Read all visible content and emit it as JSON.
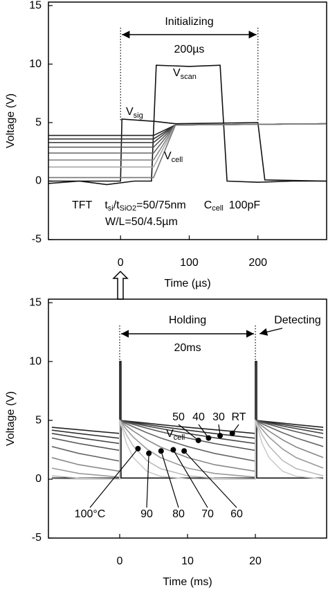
{
  "chart_data": [
    {
      "type": "line",
      "xlabel": "Time (µs)",
      "ylabel": "Voltage (V)",
      "xlim": [
        -105,
        300
      ],
      "ylim": [
        -5,
        15.3
      ],
      "xticks": [
        0,
        100,
        200
      ],
      "yticks": [
        15,
        10,
        5,
        0,
        -5
      ],
      "span": {
        "label": "Initializing",
        "sublabel": "200µs",
        "from": 0,
        "to": 200
      },
      "annotations": [
        {
          "text": "V",
          "sub": "scan"
        },
        {
          "text": "V",
          "sub": "sig"
        },
        {
          "text": "V",
          "sub": "cell"
        }
      ],
      "note": {
        "tft": "TFT",
        "t": "t",
        "si": "si",
        "slash": "/t",
        "sio2": "SiO2",
        "ratio": "=50/75nm",
        "c": "C",
        "cell": "cell",
        "cval": "100pF",
        "wl": "W/L=50/4.5µm"
      },
      "series": [
        {
          "color": "#111111",
          "x": [
            -105,
            -60,
            -20,
            20,
            45,
            52,
            100,
            145,
            155,
            200,
            250,
            300
          ],
          "values": [
            -0.2,
            0,
            -0.3,
            0,
            0,
            9.9,
            9.8,
            9.9,
            0,
            -0.1,
            0,
            0
          ]
        },
        {
          "color": "#111111",
          "x": [
            -105,
            0,
            2,
            50,
            80,
            200,
            210,
            300
          ],
          "values": [
            0,
            0,
            5.3,
            5.1,
            4.9,
            5.0,
            0.1,
            0
          ]
        },
        {
          "color": "#222222",
          "x": [
            -105,
            48,
            80,
            300
          ],
          "values": [
            3.9,
            3.9,
            4.8,
            4.9
          ]
        },
        {
          "color": "#333333",
          "x": [
            -105,
            48,
            80,
            300
          ],
          "values": [
            3.6,
            3.6,
            4.8,
            4.9
          ]
        },
        {
          "color": "#444444",
          "x": [
            -105,
            48,
            80,
            300
          ],
          "values": [
            3.3,
            3.3,
            4.8,
            4.9
          ]
        },
        {
          "color": "#555555",
          "x": [
            -105,
            48,
            80,
            300
          ],
          "values": [
            2.9,
            2.9,
            4.8,
            4.9
          ]
        },
        {
          "color": "#666666",
          "x": [
            -105,
            48,
            80,
            300
          ],
          "values": [
            2.4,
            2.4,
            4.8,
            4.9
          ]
        },
        {
          "color": "#888888",
          "x": [
            -105,
            48,
            80,
            300
          ],
          "values": [
            1.8,
            1.8,
            4.8,
            4.9
          ]
        },
        {
          "color": "#aaaaaa",
          "x": [
            -105,
            48,
            80,
            300
          ],
          "values": [
            1.2,
            1.2,
            4.8,
            4.9
          ]
        },
        {
          "color": "#777777",
          "x": [
            -105,
            48,
            80,
            300
          ],
          "values": [
            0.3,
            0.3,
            4.8,
            4.9
          ]
        }
      ]
    },
    {
      "type": "line",
      "xlabel": "Time (ms)",
      "ylabel": "Voltage (V)",
      "xlim": [
        -10.5,
        30.5
      ],
      "ylim": [
        -5,
        15.3
      ],
      "xticks": [
        0,
        10,
        20
      ],
      "yticks": [
        15,
        10,
        5,
        0,
        -5
      ],
      "span": {
        "label": "Holding",
        "sublabel": "20ms",
        "from": 0,
        "to": 20
      },
      "annotations": [
        {
          "text": "V",
          "sub": "cell"
        }
      ],
      "extra_label": "Detecting",
      "markers": [
        {
          "label": "RT",
          "x": 16.6,
          "y": 3.9
        },
        {
          "label": "30",
          "x": 14.8,
          "y": 3.7
        },
        {
          "label": "40",
          "x": 13.1,
          "y": 3.5
        },
        {
          "label": "50",
          "x": 11.6,
          "y": 3.3
        },
        {
          "label": "60",
          "x": 9.5,
          "y": 2.4
        },
        {
          "label": "70",
          "x": 7.9,
          "y": 2.5
        },
        {
          "label": "80",
          "x": 6.1,
          "y": 2.4
        },
        {
          "label": "90",
          "x": 4.3,
          "y": 2.2
        },
        {
          "label": "100°C",
          "x": 2.7,
          "y": 2.6
        }
      ],
      "series": [
        {
          "color": "#111111",
          "x": [
            -10,
            0,
            0,
            0.2,
            0.2,
            20,
            20,
            20.2,
            20.2,
            30
          ],
          "values": [
            0.1,
            0.1,
            10,
            10,
            0.1,
            0.1,
            10,
            10,
            0.1,
            0.1
          ]
        },
        {
          "color": "#222222",
          "x": [
            -10,
            -6,
            0,
            0,
            1,
            2,
            4,
            6,
            10,
            14,
            20,
            20,
            21,
            22,
            24,
            26,
            30
          ],
          "values": [
            4.41,
            4.2,
            3.89,
            5,
            4.94,
            4.88,
            4.76,
            4.64,
            4.41,
            4.2,
            3.89,
            5,
            4.94,
            4.88,
            4.76,
            4.64,
            4.41
          ]
        },
        {
          "color": "#333333",
          "x": [
            -10,
            -6,
            0,
            0,
            1,
            2,
            4,
            6,
            10,
            14,
            20,
            20,
            21,
            22,
            24,
            26,
            30
          ],
          "values": [
            4.17,
            3.88,
            3.48,
            5,
            4.91,
            4.82,
            4.65,
            4.48,
            4.17,
            3.88,
            3.48,
            5,
            4.91,
            4.82,
            4.65,
            4.48,
            4.17
          ]
        },
        {
          "color": "#444444",
          "x": [
            -10,
            -6,
            0,
            0,
            1,
            2,
            4,
            6,
            10,
            14,
            20,
            20,
            21,
            22,
            24,
            26,
            30
          ],
          "values": [
            3.89,
            3.52,
            3.03,
            5,
            4.88,
            4.76,
            4.52,
            4.3,
            3.89,
            3.52,
            3.03,
            5,
            4.88,
            4.76,
            4.52,
            4.3,
            3.89
          ]
        },
        {
          "color": "#555555",
          "x": [
            -10,
            -6,
            0,
            0,
            1,
            2,
            4,
            6,
            10,
            14,
            20,
            20,
            21,
            22,
            24,
            26,
            30
          ],
          "values": [
            3.5,
            3.03,
            2.45,
            5,
            4.82,
            4.66,
            4.33,
            4.04,
            3.5,
            3.03,
            2.45,
            5,
            4.82,
            4.66,
            4.33,
            4.04,
            3.5
          ]
        },
        {
          "color": "#666666",
          "x": [
            -10,
            -6,
            0,
            0,
            1,
            2,
            4,
            6,
            10,
            14,
            20,
            20,
            21,
            22,
            24,
            26,
            30
          ],
          "values": [
            2.78,
            2.19,
            1.54,
            5,
            4.71,
            4.45,
            3.95,
            3.51,
            2.78,
            2.19,
            1.54,
            5,
            4.71,
            4.45,
            3.95,
            3.51,
            2.78
          ]
        },
        {
          "color": "#888888",
          "x": [
            -10,
            -6,
            0,
            0,
            1,
            2,
            4,
            6,
            10,
            14,
            20,
            20,
            21,
            22,
            24,
            26,
            30
          ],
          "values": [
            1.84,
            1.23,
            0.68,
            5,
            4.52,
            4.09,
            3.35,
            2.74,
            1.84,
            1.23,
            0.68,
            5,
            4.52,
            4.09,
            3.35,
            2.74,
            1.84
          ]
        },
        {
          "color": "#999999",
          "x": [
            -10,
            -6,
            0,
            0,
            1,
            2,
            4,
            6,
            10,
            14,
            20,
            20,
            21,
            22,
            24,
            26,
            30
          ],
          "values": [
            0.94,
            0.49,
            0.18,
            5,
            4.23,
            3.58,
            2.57,
            1.84,
            0.94,
            0.49,
            0.18,
            5,
            4.23,
            3.58,
            2.57,
            1.84,
            0.94
          ]
        },
        {
          "color": "#bbbbbb",
          "x": [
            -10,
            -6,
            0,
            0,
            1,
            2,
            4,
            6,
            10,
            14,
            20,
            20,
            21,
            22,
            24,
            26,
            30
          ],
          "values": [
            0.29,
            0.09,
            0.02,
            5,
            3.76,
            2.82,
            1.59,
            0.9,
            0.29,
            0.09,
            0.02,
            5,
            3.76,
            2.82,
            1.59,
            0.9,
            0.29
          ]
        },
        {
          "color": "#cccccc",
          "x": [
            -10,
            -6,
            0,
            0,
            1,
            2,
            4,
            6,
            10,
            14,
            20,
            20,
            21,
            22,
            24,
            26,
            30
          ],
          "values": [
            0.03,
            0,
            0,
            5,
            3.03,
            1.84,
            0.68,
            0.25,
            0.03,
            0,
            0,
            5,
            3.03,
            1.84,
            0.68,
            0.25,
            0.03
          ]
        }
      ]
    }
  ]
}
